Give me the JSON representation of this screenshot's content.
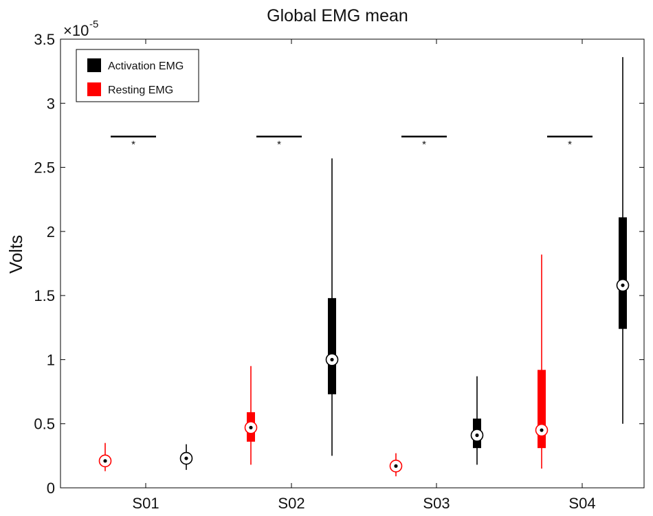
{
  "chart_data": {
    "type": "box",
    "title": "Global EMG mean",
    "ylabel": "Volts",
    "xlabel": "",
    "y_exponent_base": "×10",
    "y_exponent_power": "-5",
    "ylim": [
      0,
      3.5
    ],
    "yticks": [
      0,
      0.5,
      1,
      1.5,
      2,
      2.5,
      3,
      3.5
    ],
    "ytick_labels": [
      "0",
      "0.5",
      "1",
      "1.5",
      "2",
      "2.5",
      "3",
      "3.5"
    ],
    "categories": [
      "S01",
      "S02",
      "S03",
      "S04"
    ],
    "grid": false,
    "legend_position": "top-left",
    "series": [
      {
        "name": "Resting EMG",
        "color": "#ff0000",
        "boxes": [
          {
            "category": "S01",
            "whisker_low": 0.13,
            "q1": 0.19,
            "median": 0.21,
            "q3": 0.23,
            "whisker_high": 0.35
          },
          {
            "category": "S02",
            "whisker_low": 0.18,
            "q1": 0.36,
            "median": 0.47,
            "q3": 0.59,
            "whisker_high": 0.95
          },
          {
            "category": "S03",
            "whisker_low": 0.09,
            "q1": 0.15,
            "median": 0.17,
            "q3": 0.19,
            "whisker_high": 0.27
          },
          {
            "category": "S04",
            "whisker_low": 0.15,
            "q1": 0.31,
            "median": 0.45,
            "q3": 0.92,
            "whisker_high": 1.82
          }
        ]
      },
      {
        "name": "Activation EMG",
        "color": "#000000",
        "boxes": [
          {
            "category": "S01",
            "whisker_low": 0.14,
            "q1": 0.2,
            "median": 0.23,
            "q3": 0.26,
            "whisker_high": 0.34
          },
          {
            "category": "S02",
            "whisker_low": 0.25,
            "q1": 0.73,
            "median": 1.0,
            "q3": 1.48,
            "whisker_high": 2.57
          },
          {
            "category": "S03",
            "whisker_low": 0.18,
            "q1": 0.31,
            "median": 0.41,
            "q3": 0.54,
            "whisker_high": 0.87
          },
          {
            "category": "S04",
            "whisker_low": 0.5,
            "q1": 1.24,
            "median": 1.58,
            "q3": 2.11,
            "whisker_high": 3.36
          }
        ]
      }
    ],
    "significance": [
      {
        "category": "S01",
        "level": 2.74,
        "label": "*"
      },
      {
        "category": "S02",
        "level": 2.74,
        "label": "*"
      },
      {
        "category": "S03",
        "level": 2.74,
        "label": "*"
      },
      {
        "category": "S04",
        "level": 2.74,
        "label": "*"
      }
    ],
    "legend": [
      {
        "label": "Activation EMG",
        "color": "#000000"
      },
      {
        "label": "Resting EMG",
        "color": "#ff0000"
      }
    ]
  }
}
